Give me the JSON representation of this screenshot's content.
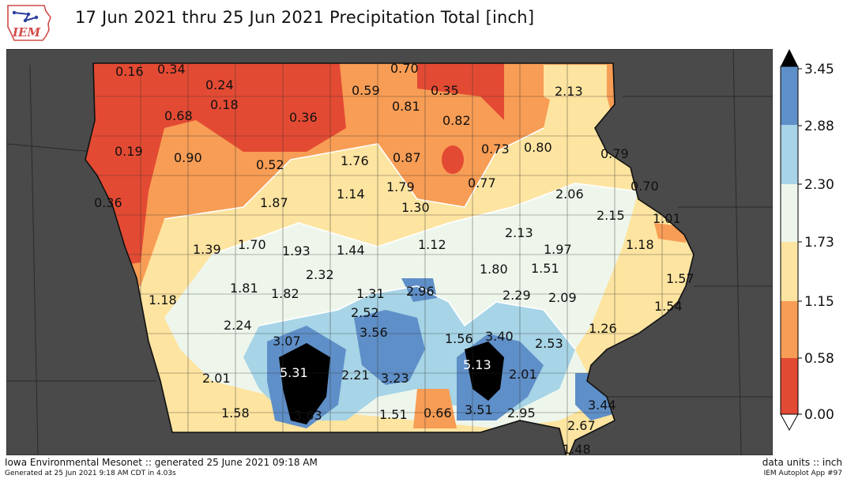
{
  "header": {
    "title": "17 Jun 2021 thru 25 Jun 2021 Precipitation Total [inch]",
    "logo_text": "IEM"
  },
  "colorbar": {
    "ticks": [
      "3.45",
      "2.88",
      "2.30",
      "1.73",
      "1.15",
      "0.58",
      "0.00"
    ],
    "colors": {
      "0.00-0.58": "#e34a33",
      "0.58-1.15": "#f89d55",
      "1.15-1.73": "#fde4a0",
      "1.73-2.30": "#eef6ec",
      "2.30-2.88": "#a7d4e6",
      "2.88-3.45": "#5f8fc8",
      "above": "#000000"
    }
  },
  "map_values": [
    "0.16",
    "0.34",
    "0.24",
    "0.18",
    "0.68",
    "0.36",
    "0.19",
    "0.90",
    "0.52",
    "0.36",
    "0.59",
    "0.70",
    "0.35",
    "0.81",
    "0.82",
    "2.13",
    "1.76",
    "0.87",
    "0.73",
    "0.80",
    "0.79",
    "1.14",
    "1.79",
    "0.77",
    "1.87",
    "1.30",
    "2.06",
    "0.70",
    "2.15",
    "1.01",
    "1.39",
    "1.70",
    "1.93",
    "1.44",
    "1.12",
    "2.13",
    "1.97",
    "1.18",
    "1.80",
    "1.51",
    "2.32",
    "1.57",
    "1.81",
    "1.82",
    "1.31",
    "2.96",
    "1.18",
    "2.29",
    "2.09",
    "1.54",
    "2.52",
    "2.24",
    "3.56",
    "1.26",
    "1.56",
    "3.40",
    "3.07",
    "2.53",
    "5.31",
    "5.13",
    "2.01",
    "2.21",
    "3.23",
    "2.01",
    "3.44",
    "1.58",
    "3.63",
    "1.51",
    "0.66",
    "3.51",
    "2.95",
    "2.67",
    "1.48"
  ],
  "footer": {
    "left_main": "Iowa Environmental Mesonet :: generated 25 June 2021 09:18 AM",
    "left_sub": "Generated at 25 Jun 2021 9:18 AM CDT in 4.03s",
    "right_main": "data units :: inch",
    "right_sub": "IEM Autoplot App #97"
  }
}
